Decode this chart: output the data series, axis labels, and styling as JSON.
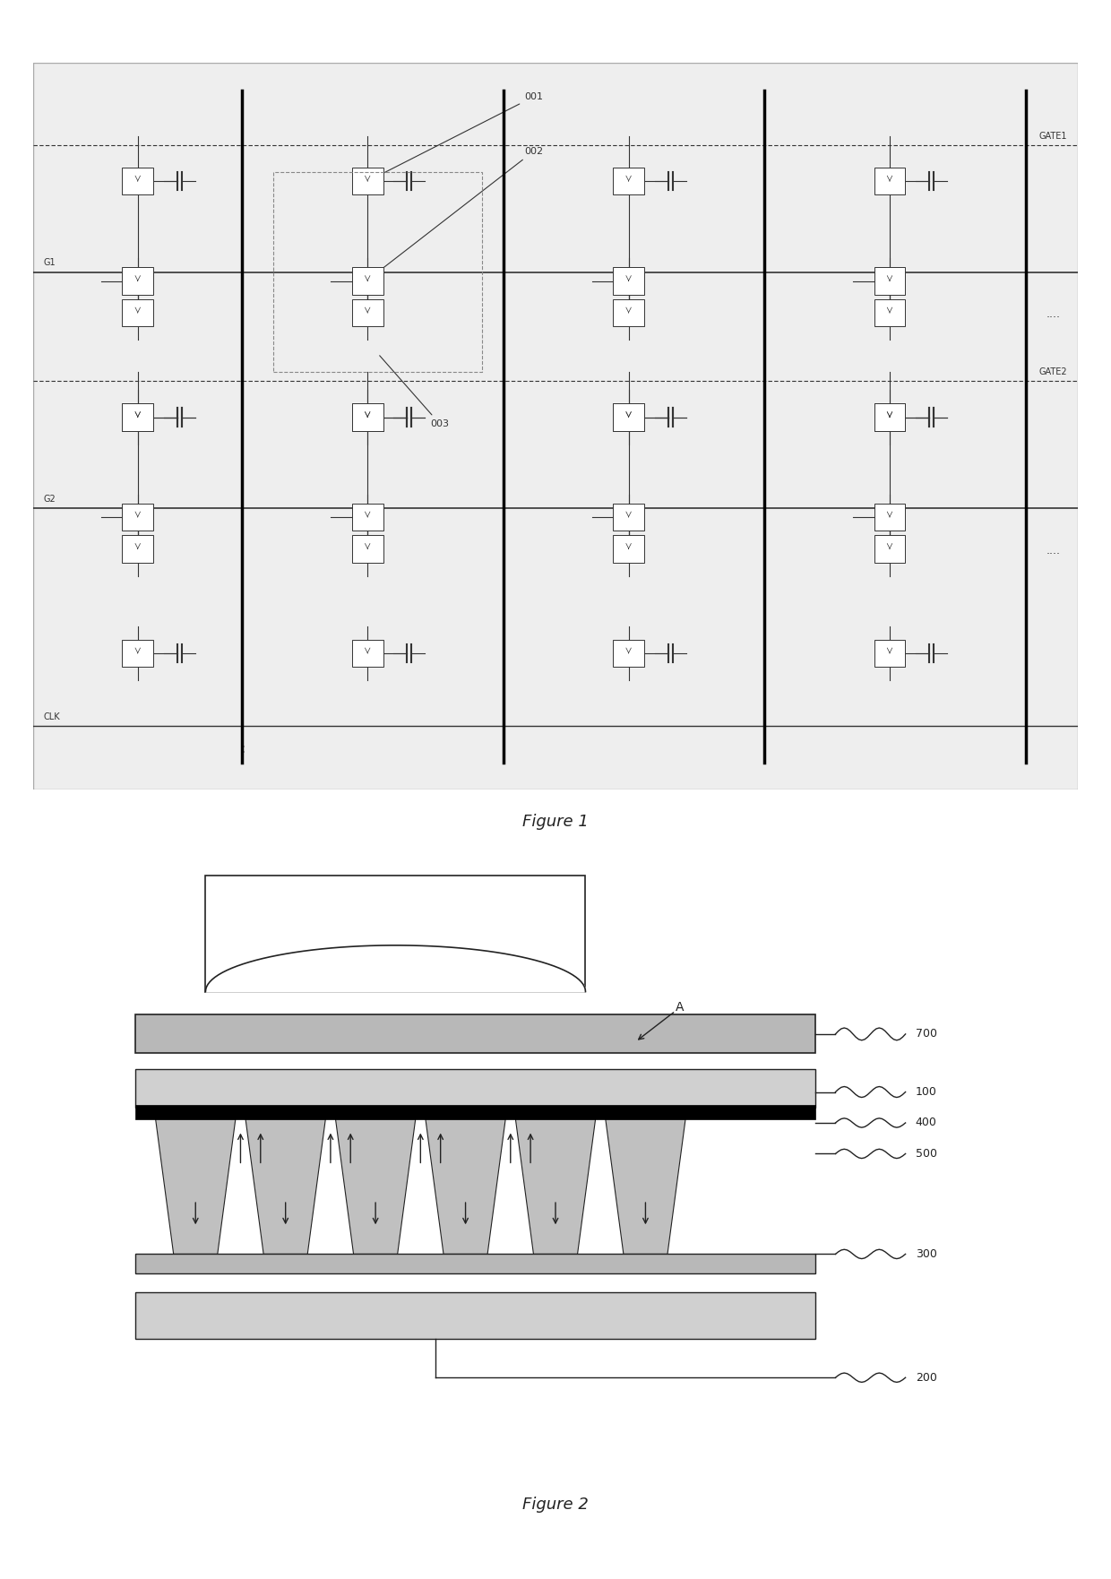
{
  "fig1_title": "Figure 1",
  "fig2_title": "Figure 2",
  "background_color": "#ffffff",
  "label_001": "001",
  "label_002": "002",
  "label_003": "003",
  "label_G1": "G1",
  "label_G2": "G2",
  "label_CLK": "CLK",
  "label_GATE1": "GATE1",
  "label_GATE2": "GATE2",
  "label_A": "A",
  "label_700": "700",
  "label_100": "100",
  "label_400": "400",
  "label_500": "500",
  "label_300": "300",
  "label_200": "200",
  "line_color": "#333333",
  "thick_line_color": "#000000",
  "gray1": "#b8b8b8",
  "gray2": "#d0d0d0",
  "dark": "#222222"
}
